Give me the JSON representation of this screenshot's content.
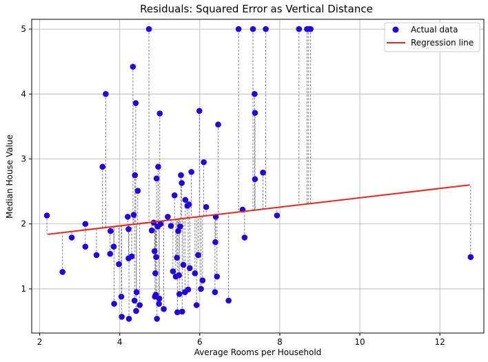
{
  "chart_data": {
    "type": "scatter",
    "title": "Residuals: Squared Error as Vertical Distance",
    "xlabel": "Average Rooms per Household",
    "ylabel": "Median House Value",
    "xlim": [
      1.8,
      13.1
    ],
    "ylim": [
      0.32,
      5.15
    ],
    "xticks": [
      2,
      4,
      6,
      8,
      10,
      12
    ],
    "yticks": [
      1,
      2,
      3,
      4,
      5
    ],
    "grid": true,
    "legend_position": "top-right",
    "colors": {
      "points": "#1f00e0",
      "line": "#e8261c",
      "residuals": "#6e6e6e",
      "grid": "#b0b0b0"
    },
    "legend": [
      "Actual data",
      "Regression line"
    ],
    "regression_line": {
      "x": [
        2.2,
        12.75
      ],
      "y": [
        1.84,
        2.6
      ]
    },
    "series": [
      {
        "name": "Actual data",
        "points": [
          [
            2.18,
            2.13
          ],
          [
            2.57,
            1.26
          ],
          [
            2.8,
            1.79
          ],
          [
            3.14,
            1.65
          ],
          [
            3.14,
            2.0
          ],
          [
            3.42,
            1.52
          ],
          [
            3.57,
            2.88
          ],
          [
            3.65,
            4.0
          ],
          [
            3.76,
            1.54
          ],
          [
            3.77,
            1.89
          ],
          [
            3.85,
            1.65
          ],
          [
            3.86,
            0.77
          ],
          [
            3.98,
            1.38
          ],
          [
            4.04,
            0.88
          ],
          [
            4.05,
            0.57
          ],
          [
            4.2,
            2.11
          ],
          [
            4.22,
            1.92
          ],
          [
            4.22,
            1.47
          ],
          [
            4.23,
            0.54
          ],
          [
            4.3,
            1.5
          ],
          [
            4.33,
            4.42
          ],
          [
            4.35,
            2.14
          ],
          [
            4.37,
            0.82
          ],
          [
            4.38,
            2.75
          ],
          [
            4.4,
            3.86
          ],
          [
            4.41,
            0.66
          ],
          [
            4.42,
            0.95
          ],
          [
            4.45,
            2.51
          ],
          [
            4.5,
            0.75
          ],
          [
            4.73,
            5.0
          ],
          [
            4.8,
            1.9
          ],
          [
            4.85,
            2.02
          ],
          [
            4.87,
            1.58
          ],
          [
            4.88,
            0.88
          ],
          [
            4.89,
            1.24
          ],
          [
            4.9,
            0.91
          ],
          [
            4.91,
            1.49
          ],
          [
            4.92,
            2.7
          ],
          [
            4.93,
            0.54
          ],
          [
            4.95,
            1.96
          ],
          [
            4.96,
            2.88
          ],
          [
            4.98,
            0.77
          ],
          [
            4.99,
            0.85
          ],
          [
            5.0,
            3.7
          ],
          [
            5.02,
            2.0
          ],
          [
            5.1,
            0.69
          ],
          [
            5.2,
            2.11
          ],
          [
            5.28,
            1.97
          ],
          [
            5.33,
            1.27
          ],
          [
            5.37,
            2.44
          ],
          [
            5.4,
            1.19
          ],
          [
            5.43,
            1.48
          ],
          [
            5.44,
            0.64
          ],
          [
            5.46,
            1.89
          ],
          [
            5.48,
            1.21
          ],
          [
            5.49,
            0.92
          ],
          [
            5.51,
            1.96
          ],
          [
            5.53,
            2.75
          ],
          [
            5.55,
            2.63
          ],
          [
            5.56,
            0.65
          ],
          [
            5.59,
            1.37
          ],
          [
            5.63,
            0.95
          ],
          [
            5.64,
            2.37
          ],
          [
            5.69,
            2.28
          ],
          [
            5.71,
            0.99
          ],
          [
            5.73,
            2.3
          ],
          [
            5.75,
            1.32
          ],
          [
            5.79,
            2.8
          ],
          [
            5.88,
            1.24
          ],
          [
            5.92,
            0.75
          ],
          [
            5.96,
            1.52
          ],
          [
            5.99,
            3.74
          ],
          [
            6.03,
            1.0
          ],
          [
            6.07,
            1.13
          ],
          [
            6.1,
            2.95
          ],
          [
            6.16,
            2.26
          ],
          [
            6.38,
            0.95
          ],
          [
            6.39,
            1.72
          ],
          [
            6.4,
            2.11
          ],
          [
            6.43,
            1.19
          ],
          [
            6.46,
            3.53
          ],
          [
            6.72,
            0.82
          ],
          [
            6.97,
            5.0
          ],
          [
            7.07,
            2.22
          ],
          [
            7.12,
            1.79
          ],
          [
            7.33,
            5.0
          ],
          [
            7.37,
            4.0
          ],
          [
            7.38,
            3.71
          ],
          [
            7.38,
            2.69
          ],
          [
            7.58,
            2.79
          ],
          [
            7.65,
            5.0
          ],
          [
            7.93,
            2.13
          ],
          [
            8.48,
            5.0
          ],
          [
            8.68,
            5.0
          ],
          [
            8.72,
            5.0
          ],
          [
            8.77,
            5.0
          ],
          [
            12.77,
            1.49
          ]
        ]
      }
    ]
  }
}
